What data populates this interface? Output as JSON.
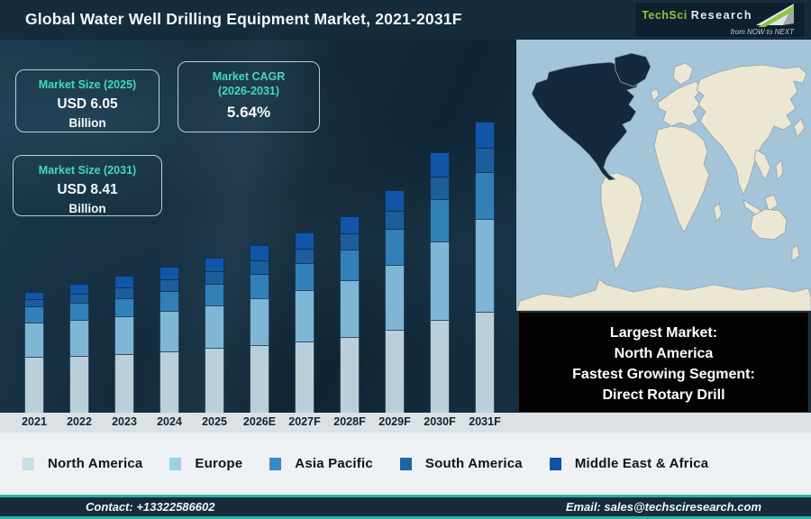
{
  "header": {
    "title": "Global Water Well Drilling Equipment Market, 2021-2031F",
    "logo": {
      "brand_primary": "TechSci",
      "brand_secondary": "Research",
      "tagline": "from NOW to NEXT"
    }
  },
  "info_boxes": {
    "size_2025": {
      "label": "Market Size (2025)",
      "value": "USD 6.05",
      "unit": "Billion"
    },
    "cagr": {
      "label": "Market CAGR",
      "label2": "(2026-2031)",
      "value": "5.64%"
    },
    "size_2031": {
      "label": "Market Size (2031)",
      "value": "USD 8.41",
      "unit": "Billion"
    }
  },
  "chart_data": {
    "type": "bar",
    "stacked": true,
    "title": "Global Water Well Drilling Equipment Market, 2021-2031F",
    "categories": [
      "2021",
      "2022",
      "2023",
      "2024",
      "2025",
      "2026E",
      "2027F",
      "2028F",
      "2029F",
      "2030F",
      "2031F"
    ],
    "series": [
      {
        "name": "North America",
        "color": "#b9cfda",
        "legend_color": "#c9dde8",
        "values": [
          62,
          63,
          65,
          68,
          72,
          75,
          79,
          84,
          92,
          103,
          112
        ]
      },
      {
        "name": "Europe",
        "color": "#7fb6d6",
        "legend_color": "#9ccfe8",
        "values": [
          38,
          40,
          42,
          45,
          47,
          52,
          57,
          63,
          72,
          87,
          103
        ]
      },
      {
        "name": "Asia Pacific",
        "color": "#3181b8",
        "legend_color": "#3a8ac2",
        "values": [
          18,
          19,
          20,
          22,
          24,
          27,
          30,
          34,
          40,
          47,
          52
        ]
      },
      {
        "name": "South America",
        "color": "#1d5d9c",
        "legend_color": "#1d63a8",
        "values": [
          8,
          10,
          12,
          13,
          14,
          15,
          16,
          18,
          20,
          25,
          27
        ]
      },
      {
        "name": "Middle East & Africa",
        "color": "#1155a8",
        "legend_color": "#0f52a8",
        "values": [
          8,
          11,
          13,
          14,
          15,
          17,
          18,
          19,
          23,
          27,
          29
        ]
      }
    ],
    "value_unit": "relative bar height (illustrative, no y-axis shown)",
    "known_values": {
      "market_size_2025": "USD 6.05 Billion",
      "market_size_2031": "USD 8.41 Billion",
      "cagr_2026_2031": "5.64%"
    },
    "ylabel": "",
    "grid": false,
    "legend_position": "bottom"
  },
  "map": {
    "highlight_region": "North America",
    "colors": {
      "ocean": "#a4c4da",
      "land": "#ece7d2",
      "highlight": "#12293e"
    }
  },
  "callout": {
    "lines": [
      "Largest Market:",
      "North America",
      "Fastest Growing Segment:",
      "Direct Rotary Drill"
    ]
  },
  "footer": {
    "contact": "Contact: +13322586602",
    "email": "Email: sales@techsciresearch.com"
  },
  "colors": {
    "accent_teal": "#2bb3a8",
    "header_bg": "#142c3c",
    "chart_bg": "#152e40",
    "info_label_teal": "#3fd9c2",
    "logo_green": "#8dc63f",
    "callout_bg": "#000000"
  }
}
